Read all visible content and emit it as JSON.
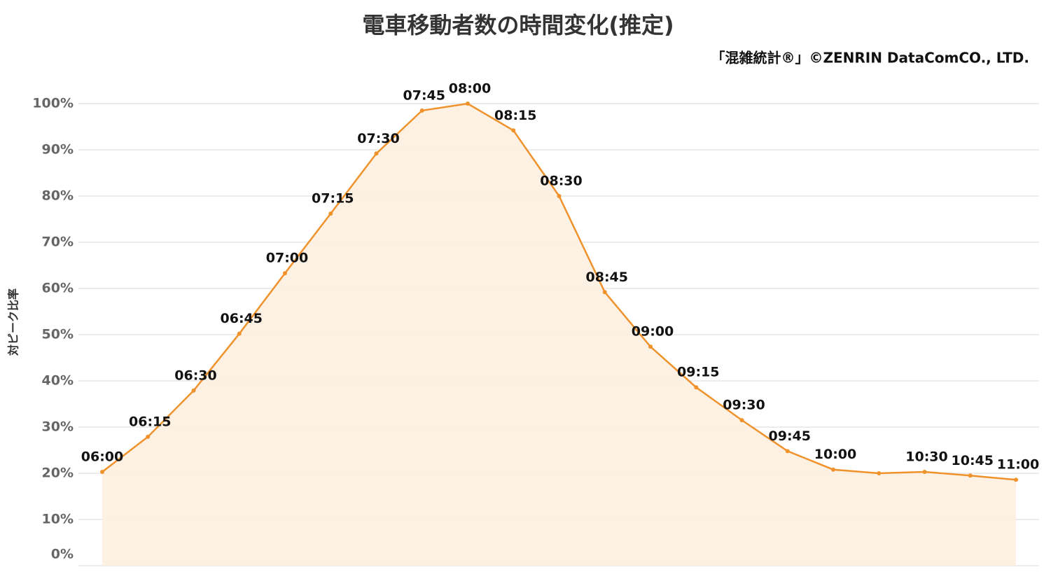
{
  "chart_data": {
    "type": "area",
    "title": "電車移動者数の時間変化(推定)",
    "source": "「混雑統計®」©ZENRIN DataComCO., LTD.",
    "y_label": "対ピーク比率",
    "categories": [
      "06:00",
      "06:15",
      "06:30",
      "06:45",
      "07:00",
      "07:15",
      "07:30",
      "07:45",
      "08:00",
      "08:15",
      "08:30",
      "08:45",
      "09:00",
      "09:15",
      "09:30",
      "09:45",
      "10:00",
      null,
      "10:30",
      "10:45",
      "11:00"
    ],
    "values": [
      20.3,
      27.9,
      37.9,
      50.2,
      63.3,
      76.2,
      89.2,
      98.5,
      100,
      94.2,
      80.0,
      59.2,
      47.4,
      38.6,
      31.5,
      24.8,
      20.8,
      20.0,
      20.3,
      19.5,
      18.6
    ],
    "color": "#f0922b",
    "fill_color": "#fcefe0",
    "ylim": [
      0,
      100
    ],
    "yticks": [
      {
        "value": 0,
        "label": "0%"
      },
      {
        "value": 10,
        "label": "10%"
      },
      {
        "value": 20,
        "label": "20%"
      },
      {
        "value": 30,
        "label": "30%"
      },
      {
        "value": 40,
        "label": "40%"
      },
      {
        "value": 50,
        "label": "50%"
      },
      {
        "value": 60,
        "label": "60%"
      },
      {
        "value": 70,
        "label": "70%"
      },
      {
        "value": 80,
        "label": "80%"
      },
      {
        "value": 90,
        "label": "90%"
      },
      {
        "value": 100,
        "label": "100%"
      }
    ],
    "grid": true
  }
}
